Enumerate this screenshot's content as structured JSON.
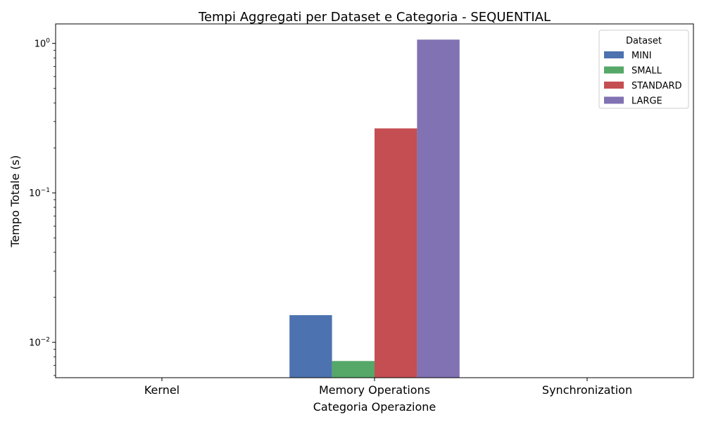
{
  "chart_data": {
    "type": "bar",
    "title": "Tempi Aggregati per Dataset e Categoria - SEQUENTIAL",
    "xlabel": "Categoria Operazione",
    "ylabel": "Tempo Totale (s)",
    "yscale": "log",
    "ylim": [
      0.0058,
      1.35
    ],
    "yticks": [
      {
        "value": 0.01,
        "base": "10",
        "exp": "−2"
      },
      {
        "value": 0.1,
        "base": "10",
        "exp": "−1"
      },
      {
        "value": 1,
        "base": "10",
        "exp": "0"
      }
    ],
    "categories": [
      "Kernel",
      "Memory Operations",
      "Synchronization"
    ],
    "legend": {
      "title": "Dataset",
      "position": "top-right"
    },
    "series": [
      {
        "name": "MINI",
        "color": "#4c72b0",
        "values": [
          null,
          0.0152,
          null
        ]
      },
      {
        "name": "SMALL",
        "color": "#55a868",
        "values": [
          null,
          0.0075,
          null
        ]
      },
      {
        "name": "STANDARD",
        "color": "#c44e52",
        "values": [
          null,
          0.27,
          null
        ]
      },
      {
        "name": "LARGE",
        "color": "#8172b3",
        "values": [
          null,
          1.06,
          null
        ]
      }
    ]
  }
}
